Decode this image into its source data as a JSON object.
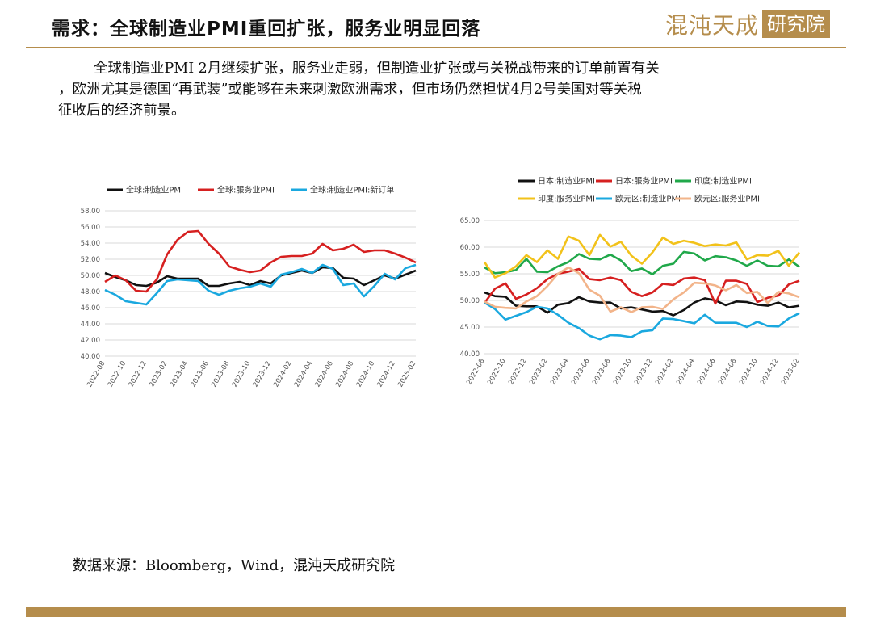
{
  "page": {
    "title": "需求：全球制造业PMI重回扩张，服务业明显回落",
    "logo_text": "混沌天成",
    "logo_box": "研究院",
    "paragraph_line1": "全球制造业PMI 2月继续扩张，服务业走弱，但制造业扩张或与关税战带来的订单前置有关",
    "paragraph_line2": "，欧洲尤其是德国“再武装”或能够在未来刺激欧洲需求，但市场仍然担忧4月2号美国对等关税",
    "paragraph_line3": "征收后的经济前景。",
    "source": "数据来源：Bloomberg，Wind，混沌天成研究院",
    "accent_color": "#b58d4c"
  },
  "chart_data": [
    {
      "type": "line",
      "x": [
        "2022-08",
        "2022-09",
        "2022-10",
        "2022-11",
        "2022-12",
        "2023-01",
        "2023-02",
        "2023-03",
        "2023-04",
        "2023-05",
        "2023-06",
        "2023-07",
        "2023-08",
        "2023-09",
        "2023-10",
        "2023-11",
        "2023-12",
        "2024-01",
        "2024-02",
        "2024-03",
        "2024-04",
        "2024-05",
        "2024-06",
        "2024-07",
        "2024-08",
        "2024-09",
        "2024-10",
        "2024-11",
        "2024-12",
        "2025-01",
        "2025-02"
      ],
      "x_tick_labels": [
        "2022-08",
        "2022-10",
        "2022-12",
        "2023-02",
        "2023-04",
        "2023-06",
        "2023-08",
        "2023-10",
        "2023-12",
        "2024-02",
        "2024-04",
        "2024-06",
        "2024-08",
        "2024-10",
        "2024-12",
        "2025-02"
      ],
      "ylim": [
        40,
        58
      ],
      "y_ticks": [
        "40.00",
        "42.00",
        "44.00",
        "46.00",
        "48.00",
        "50.00",
        "52.00",
        "54.00",
        "56.00",
        "58.00"
      ],
      "series": [
        {
          "name": "全球:制造业PMI",
          "color": "#111111",
          "values": [
            50.3,
            49.8,
            49.4,
            48.8,
            48.7,
            49.1,
            49.9,
            49.6,
            49.6,
            49.6,
            48.7,
            48.7,
            49.0,
            49.2,
            48.8,
            49.3,
            49.0,
            50.0,
            50.3,
            50.6,
            50.3,
            51.0,
            50.9,
            49.7,
            49.6,
            48.8,
            49.4,
            50.0,
            49.6,
            50.1,
            50.6
          ]
        },
        {
          "name": "全球:服务业PMI",
          "color": "#d62020",
          "values": [
            49.2,
            50.0,
            49.4,
            48.1,
            48.0,
            49.5,
            52.6,
            54.4,
            55.4,
            55.5,
            53.9,
            52.7,
            51.1,
            50.7,
            50.4,
            50.6,
            51.6,
            52.3,
            52.4,
            52.4,
            52.7,
            53.9,
            53.1,
            53.3,
            53.8,
            52.9,
            53.1,
            53.1,
            52.7,
            52.2,
            51.6
          ]
        },
        {
          "name": "全球:制造业PMI:新订单",
          "color": "#1aa8df",
          "values": [
            48.2,
            47.6,
            46.8,
            46.6,
            46.4,
            47.8,
            49.3,
            49.5,
            49.4,
            49.3,
            48.1,
            47.6,
            48.1,
            48.4,
            48.6,
            49.0,
            48.6,
            50.1,
            50.4,
            50.8,
            50.3,
            51.3,
            50.8,
            48.8,
            49.0,
            47.4,
            48.7,
            50.2,
            49.5,
            50.9,
            51.3
          ]
        }
      ]
    },
    {
      "type": "line",
      "x": [
        "2022-08",
        "2022-09",
        "2022-10",
        "2022-11",
        "2022-12",
        "2023-01",
        "2023-02",
        "2023-03",
        "2023-04",
        "2023-05",
        "2023-06",
        "2023-07",
        "2023-08",
        "2023-09",
        "2023-10",
        "2023-11",
        "2023-12",
        "2024-01",
        "2024-02",
        "2024-03",
        "2024-04",
        "2024-05",
        "2024-06",
        "2024-07",
        "2024-08",
        "2024-09",
        "2024-10",
        "2024-11",
        "2024-12",
        "2025-01",
        "2025-02"
      ],
      "x_tick_labels": [
        "2022-08",
        "2022-10",
        "2022-12",
        "2023-02",
        "2023-04",
        "2023-06",
        "2023-08",
        "2023-10",
        "2023-12",
        "2024-02",
        "2024-04",
        "2024-06",
        "2024-08",
        "2024-10",
        "2024-12",
        "2025-02"
      ],
      "ylim": [
        40,
        65
      ],
      "y_ticks": [
        "40.00",
        "45.00",
        "50.00",
        "55.00",
        "60.00",
        "65.00"
      ],
      "series": [
        {
          "name": "日本:制造业PMI",
          "color": "#111111",
          "values": [
            51.5,
            50.8,
            50.7,
            49.0,
            48.9,
            48.9,
            47.7,
            49.2,
            49.5,
            50.6,
            49.8,
            49.6,
            49.6,
            48.5,
            48.7,
            48.3,
            47.9,
            48.0,
            47.2,
            48.2,
            49.6,
            50.4,
            50.0,
            49.1,
            49.8,
            49.7,
            49.2,
            49.0,
            49.6,
            48.7,
            49.0
          ]
        },
        {
          "name": "日本:服务业PMI",
          "color": "#d62020",
          "values": [
            49.5,
            52.2,
            53.2,
            50.3,
            51.1,
            52.3,
            54.0,
            55.0,
            55.4,
            55.9,
            54.0,
            53.8,
            54.3,
            53.8,
            51.6,
            50.8,
            51.5,
            53.1,
            52.9,
            54.1,
            54.3,
            53.8,
            49.4,
            53.7,
            53.7,
            53.1,
            49.7,
            50.5,
            50.9,
            53.0,
            53.7
          ]
        },
        {
          "name": "印度:制造业PMI",
          "color": "#20a84a",
          "values": [
            56.2,
            55.1,
            55.3,
            55.7,
            57.8,
            55.4,
            55.3,
            56.4,
            57.2,
            58.7,
            57.8,
            57.7,
            58.6,
            57.5,
            55.5,
            56.0,
            54.9,
            56.5,
            56.9,
            59.1,
            58.8,
            57.5,
            58.3,
            58.1,
            57.5,
            56.5,
            57.5,
            56.5,
            56.4,
            57.7,
            56.3
          ]
        },
        {
          "name": "印度:服务业PMI",
          "color": "#f2c21a",
          "values": [
            57.2,
            54.3,
            55.1,
            56.4,
            58.5,
            57.2,
            59.4,
            57.8,
            62.0,
            61.2,
            58.5,
            62.3,
            60.1,
            61.0,
            58.4,
            56.9,
            59.0,
            61.8,
            60.6,
            61.2,
            60.8,
            60.2,
            60.5,
            60.3,
            60.9,
            57.7,
            58.5,
            58.4,
            59.3,
            56.5,
            59.0
          ]
        },
        {
          "name": "欧元区:制造业PMI",
          "color": "#1aa8df",
          "values": [
            49.6,
            48.4,
            46.4,
            47.1,
            47.8,
            48.8,
            48.5,
            47.3,
            45.8,
            44.8,
            43.4,
            42.7,
            43.5,
            43.4,
            43.1,
            44.2,
            44.4,
            46.6,
            46.5,
            46.1,
            45.7,
            47.3,
            45.8,
            45.8,
            45.8,
            45.0,
            46.0,
            45.2,
            45.1,
            46.6,
            47.6
          ]
        },
        {
          "name": "欧元区:服务业PMI",
          "color": "#f2b48a",
          "values": [
            49.8,
            48.8,
            48.6,
            48.5,
            49.8,
            50.8,
            52.7,
            55.0,
            56.2,
            55.1,
            52.0,
            50.9,
            47.9,
            48.7,
            47.8,
            48.7,
            48.8,
            48.4,
            50.2,
            51.5,
            53.3,
            53.2,
            52.8,
            51.9,
            52.9,
            51.4,
            51.6,
            49.5,
            51.6,
            51.3,
            50.6
          ]
        }
      ]
    }
  ]
}
